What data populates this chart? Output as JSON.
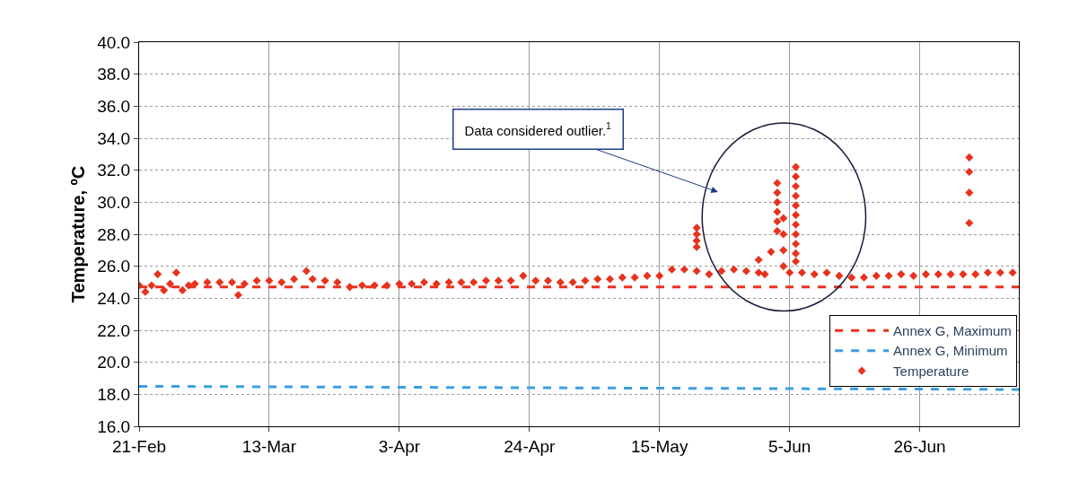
{
  "chart_data": {
    "type": "scatter",
    "ylabel": "Temperature, ºC",
    "xlim": [
      "--02-21",
      "--07-12"
    ],
    "xticks": [
      {
        "value": "--02-21",
        "label": "21-Feb"
      },
      {
        "value": "--03-13",
        "label": "13-Mar"
      },
      {
        "value": "--04-03",
        "label": "3-Apr"
      },
      {
        "value": "--04-24",
        "label": "24-Apr"
      },
      {
        "value": "--05-15",
        "label": "15-May"
      },
      {
        "value": "--06-05",
        "label": "5-Jun"
      },
      {
        "value": "--06-26",
        "label": "26-Jun"
      }
    ],
    "ylim": [
      16,
      40
    ],
    "yticks": [
      {
        "value": 16,
        "label": "16.0"
      },
      {
        "value": 18,
        "label": "18.0"
      },
      {
        "value": 20,
        "label": "20.0"
      },
      {
        "value": 22,
        "label": "22.0"
      },
      {
        "value": 24,
        "label": "24.0"
      },
      {
        "value": 26,
        "label": "26.0"
      },
      {
        "value": 28,
        "label": "28.0"
      },
      {
        "value": 30,
        "label": "30.0"
      },
      {
        "value": 32,
        "label": "32.0"
      },
      {
        "value": 34,
        "label": "34.0"
      },
      {
        "value": 36,
        "label": "36.0"
      },
      {
        "value": 38,
        "label": "38.0"
      },
      {
        "value": 40,
        "label": "40.0"
      }
    ],
    "grid": true,
    "legend": "bottom right",
    "annotations": [
      "Data considered outlier.$^{1}$"
    ],
    "series": [
      {
        "name": "Annex G, Maximum",
        "type": "line",
        "line_style": "dashed",
        "marker": "none",
        "color": "#e8321e",
        "x": [
          "--02-21",
          "--07-12"
        ],
        "values": [
          24.7,
          24.7
        ]
      },
      {
        "name": "Annex G, Minimum",
        "type": "line",
        "line_style": "dashed",
        "marker": "none",
        "color": "#3aa0e0",
        "x": [
          "--02-21",
          "--07-12"
        ],
        "values": [
          18.5,
          18.3
        ]
      },
      {
        "name": "Temperature",
        "marker": "diamond",
        "color": "#e8321e",
        "x": [
          "--02-21",
          "--02-22",
          "--02-23",
          "--02-24",
          "--02-25",
          "--02-26",
          "--02-27",
          "--02-28",
          "--02-29",
          "--03-01",
          "--03-03",
          "--03-05",
          "--03-07",
          "--03-08",
          "--03-09",
          "--03-11",
          "--03-13",
          "--03-15",
          "--03-17",
          "--03-19",
          "--03-20",
          "--03-22",
          "--03-24",
          "--03-26",
          "--03-28",
          "--03-30",
          "--04-01",
          "--04-03",
          "--04-05",
          "--04-07",
          "--04-09",
          "--04-11",
          "--04-13",
          "--04-15",
          "--04-17",
          "--04-19",
          "--04-21",
          "--04-23",
          "--04-25",
          "--04-27",
          "--04-29",
          "--05-01",
          "--05-03",
          "--05-05",
          "--05-07",
          "--05-09",
          "--05-11",
          "--05-13",
          "--05-15",
          "--05-17",
          "--05-19",
          "--05-21",
          "--05-21",
          "--05-21",
          "--05-21",
          "--05-21",
          "--05-23",
          "--05-25",
          "--05-27",
          "--05-29",
          "--05-31",
          "--05-31",
          "--06-01",
          "--06-02",
          "--06-03",
          "--06-03",
          "--06-03",
          "--06-03",
          "--06-03",
          "--06-03",
          "--06-04",
          "--06-04",
          "--06-04",
          "--06-04",
          "--06-05",
          "--06-06",
          "--06-06",
          "--06-06",
          "--06-06",
          "--06-06",
          "--06-06",
          "--06-06",
          "--06-06",
          "--06-06",
          "--06-06",
          "--06-06",
          "--06-07",
          "--06-09",
          "--06-11",
          "--06-13",
          "--06-15",
          "--06-17",
          "--06-19",
          "--06-21",
          "--06-23",
          "--06-25",
          "--06-27",
          "--06-29",
          "--07-01",
          "--07-03",
          "--07-04",
          "--07-04",
          "--07-04",
          "--07-04",
          "--07-05",
          "--07-07",
          "--07-09",
          "--07-11"
        ],
        "values": [
          24.8,
          24.4,
          24.8,
          25.5,
          24.5,
          24.9,
          25.6,
          24.5,
          24.8,
          24.9,
          25.0,
          25.0,
          25.0,
          24.2,
          24.9,
          25.1,
          25.1,
          25.0,
          25.2,
          25.7,
          25.2,
          25.1,
          25.0,
          24.7,
          24.8,
          24.8,
          24.8,
          24.9,
          24.9,
          25.0,
          24.9,
          25.0,
          25.0,
          25.0,
          25.1,
          25.1,
          25.1,
          25.4,
          25.1,
          25.1,
          25.0,
          25.0,
          25.1,
          25.2,
          25.2,
          25.3,
          25.3,
          25.4,
          25.4,
          25.8,
          25.8,
          25.7,
          28.4,
          28.0,
          27.6,
          27.2,
          25.5,
          25.7,
          25.8,
          25.7,
          25.6,
          26.4,
          25.5,
          26.9,
          28.2,
          28.8,
          29.4,
          30.0,
          30.6,
          31.2,
          29.0,
          28.0,
          27.0,
          26.0,
          25.6,
          32.2,
          31.6,
          31.0,
          30.4,
          29.8,
          29.2,
          28.6,
          28.0,
          27.4,
          26.8,
          26.3,
          25.6,
          25.5,
          25.6,
          25.4,
          25.3,
          25.3,
          25.4,
          25.4,
          25.5,
          25.4,
          25.5,
          25.5,
          25.5,
          25.5,
          32.8,
          31.9,
          30.6,
          28.7,
          25.5,
          25.6,
          25.6,
          25.6
        ]
      }
    ]
  }
}
